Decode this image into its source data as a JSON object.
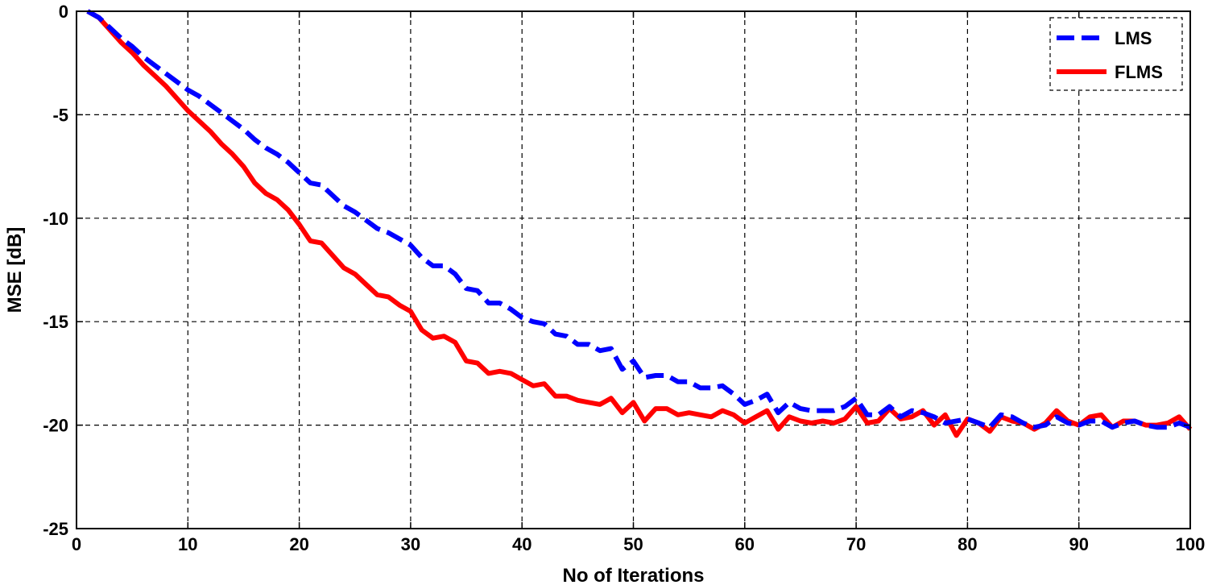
{
  "chart_data": {
    "type": "line",
    "xlabel": "No of Iterations",
    "ylabel": "MSE [dB]",
    "xlim": [
      0,
      100
    ],
    "ylim": [
      -25,
      0
    ],
    "xticks": [
      0,
      10,
      20,
      30,
      40,
      50,
      60,
      70,
      80,
      90,
      100
    ],
    "yticks": [
      0,
      -5,
      -10,
      -15,
      -20,
      -25
    ],
    "xtick_labels": [
      "0",
      "10",
      "20",
      "30",
      "40",
      "50",
      "60",
      "70",
      "80",
      "90",
      "100"
    ],
    "ytick_labels": [
      "0",
      "-5",
      "-10",
      "-15",
      "-20",
      "-25"
    ],
    "grid": true,
    "legend_position": "top-right",
    "x": [
      1,
      2,
      3,
      4,
      5,
      6,
      7,
      8,
      9,
      10,
      11,
      12,
      13,
      14,
      15,
      16,
      17,
      18,
      19,
      20,
      21,
      22,
      23,
      24,
      25,
      26,
      27,
      28,
      29,
      30,
      31,
      32,
      33,
      34,
      35,
      36,
      37,
      38,
      39,
      40,
      41,
      42,
      43,
      44,
      45,
      46,
      47,
      48,
      49,
      50,
      51,
      52,
      53,
      54,
      55,
      56,
      57,
      58,
      59,
      60,
      61,
      62,
      63,
      64,
      65,
      66,
      67,
      68,
      69,
      70,
      71,
      72,
      73,
      74,
      75,
      76,
      77,
      78,
      79,
      80,
      81,
      82,
      83,
      84,
      85,
      86,
      87,
      88,
      89,
      90,
      91,
      92,
      93,
      94,
      95,
      96,
      97,
      98,
      99,
      100
    ],
    "series": [
      {
        "name": "LMS",
        "color": "#0000ff",
        "style": "dashed",
        "values": [
          0,
          -0.3,
          -0.8,
          -1.3,
          -1.7,
          -2.2,
          -2.6,
          -3.0,
          -3.4,
          -3.8,
          -4.1,
          -4.5,
          -4.9,
          -5.3,
          -5.7,
          -6.2,
          -6.6,
          -6.9,
          -7.3,
          -7.8,
          -8.3,
          -8.4,
          -8.9,
          -9.4,
          -9.7,
          -10.1,
          -10.5,
          -10.7,
          -11.0,
          -11.3,
          -11.9,
          -12.3,
          -12.3,
          -12.7,
          -13.4,
          -13.5,
          -14.1,
          -14.1,
          -14.4,
          -14.8,
          -15.0,
          -15.1,
          -15.6,
          -15.7,
          -16.1,
          -16.1,
          -16.4,
          -16.3,
          -17.3,
          -16.9,
          -17.7,
          -17.6,
          -17.6,
          -17.9,
          -17.9,
          -18.2,
          -18.2,
          -18.1,
          -18.5,
          -19.0,
          -18.8,
          -18.5,
          -19.4,
          -18.9,
          -19.2,
          -19.3,
          -19.3,
          -19.3,
          -19.1,
          -18.7,
          -19.5,
          -19.5,
          -19.1,
          -19.6,
          -19.3,
          -19.4,
          -19.6,
          -19.9,
          -19.8,
          -19.7,
          -19.9,
          -20.1,
          -19.5,
          -19.6,
          -19.9,
          -20.1,
          -20.0,
          -19.6,
          -19.9,
          -20.0,
          -19.8,
          -19.8,
          -20.1,
          -19.9,
          -19.8,
          -20.0,
          -20.1,
          -20.1,
          -19.9,
          -20.1
        ]
      },
      {
        "name": "FLMS",
        "color": "#ff0000",
        "style": "solid",
        "values": [
          0,
          -0.3,
          -0.9,
          -1.5,
          -2.0,
          -2.6,
          -3.1,
          -3.6,
          -4.2,
          -4.8,
          -5.3,
          -5.8,
          -6.4,
          -6.9,
          -7.5,
          -8.3,
          -8.8,
          -9.1,
          -9.6,
          -10.3,
          -11.1,
          -11.2,
          -11.8,
          -12.4,
          -12.7,
          -13.2,
          -13.7,
          -13.8,
          -14.2,
          -14.5,
          -15.4,
          -15.8,
          -15.7,
          -16.0,
          -16.9,
          -17.0,
          -17.5,
          -17.4,
          -17.5,
          -17.8,
          -18.1,
          -18.0,
          -18.6,
          -18.6,
          -18.8,
          -18.9,
          -19.0,
          -18.7,
          -19.4,
          -18.9,
          -19.8,
          -19.2,
          -19.2,
          -19.5,
          -19.4,
          -19.5,
          -19.6,
          -19.3,
          -19.5,
          -19.9,
          -19.6,
          -19.3,
          -20.2,
          -19.6,
          -19.8,
          -19.9,
          -19.8,
          -19.9,
          -19.7,
          -19.1,
          -19.9,
          -19.8,
          -19.2,
          -19.7,
          -19.6,
          -19.3,
          -20.0,
          -19.5,
          -20.5,
          -19.7,
          -19.9,
          -20.3,
          -19.6,
          -19.8,
          -19.9,
          -20.2,
          -19.9,
          -19.3,
          -19.8,
          -20.0,
          -19.6,
          -19.5,
          -20.1,
          -19.8,
          -19.8,
          -20.0,
          -20.0,
          -19.9,
          -19.6,
          -20.2
        ]
      }
    ]
  }
}
